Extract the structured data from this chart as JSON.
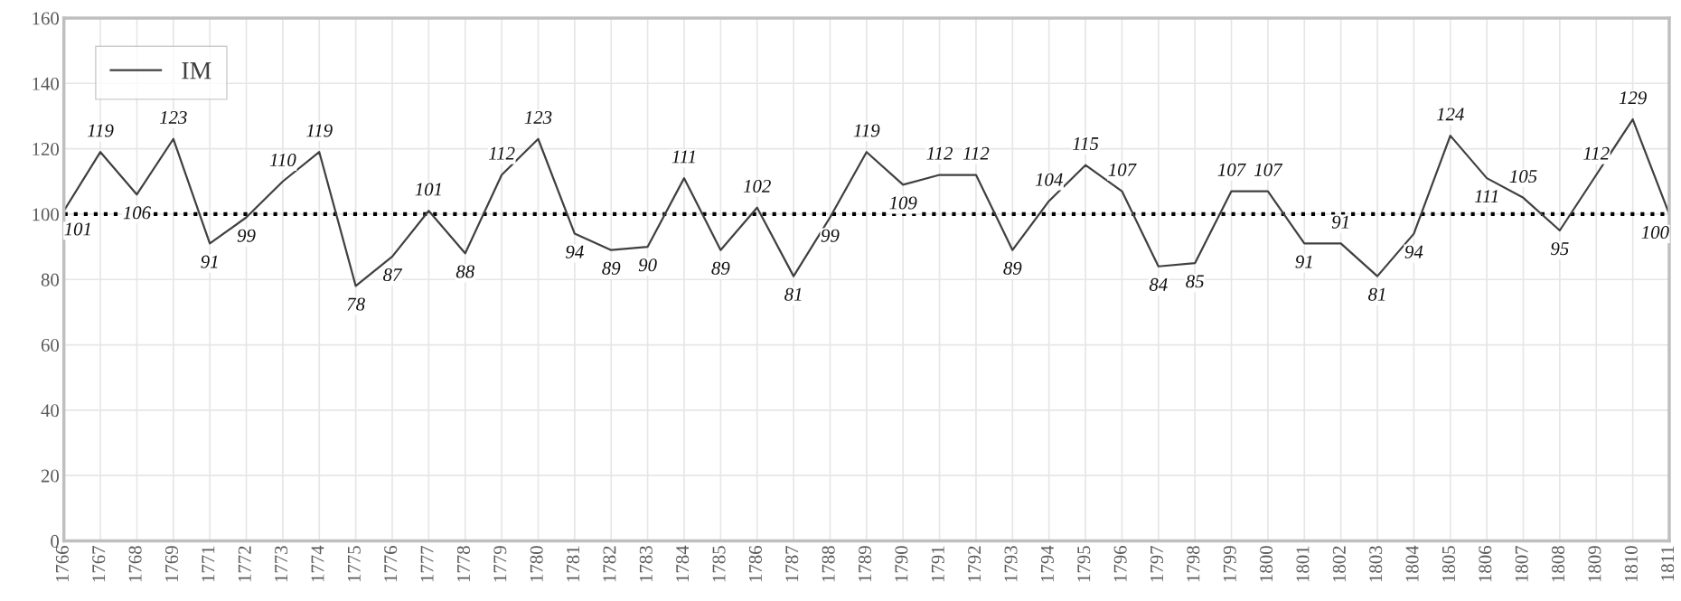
{
  "chart_data": {
    "type": "line",
    "categories": [
      "1766",
      "1767",
      "1768",
      "1769",
      "1771",
      "1772",
      "1773",
      "1774",
      "1775",
      "1776",
      "1777",
      "1778",
      "1779",
      "1780",
      "1781",
      "1782",
      "1783",
      "1784",
      "1785",
      "1786",
      "1787",
      "1788",
      "1789",
      "1790",
      "1791",
      "1792",
      "1793",
      "1794",
      "1795",
      "1796",
      "1797",
      "1798",
      "1799",
      "1800",
      "1801",
      "1802",
      "1803",
      "1804",
      "1805",
      "1806",
      "1807",
      "1808",
      "1809",
      "1810",
      "1811"
    ],
    "series": [
      {
        "name": "IM",
        "color": "#404040",
        "values": [
          101,
          119,
          106,
          123,
          91,
          99,
          110,
          119,
          78,
          87,
          101,
          88,
          112,
          123,
          94,
          89,
          90,
          111,
          89,
          102,
          81,
          99,
          119,
          109,
          112,
          112,
          89,
          104,
          115,
          107,
          84,
          85,
          107,
          107,
          91,
          91,
          81,
          94,
          124,
          111,
          105,
          95,
          112,
          129,
          100
        ]
      }
    ],
    "ylim": [
      0,
      160
    ],
    "yticks": [
      0,
      20,
      40,
      60,
      80,
      100,
      120,
      140,
      160
    ],
    "ref_lines": [
      {
        "axis": "y",
        "value": 100,
        "color": "#000000",
        "line_style": "dotted"
      }
    ],
    "data_labels": true,
    "grid": true,
    "legend": "top left",
    "marker": "none",
    "line_style": "solid"
  }
}
